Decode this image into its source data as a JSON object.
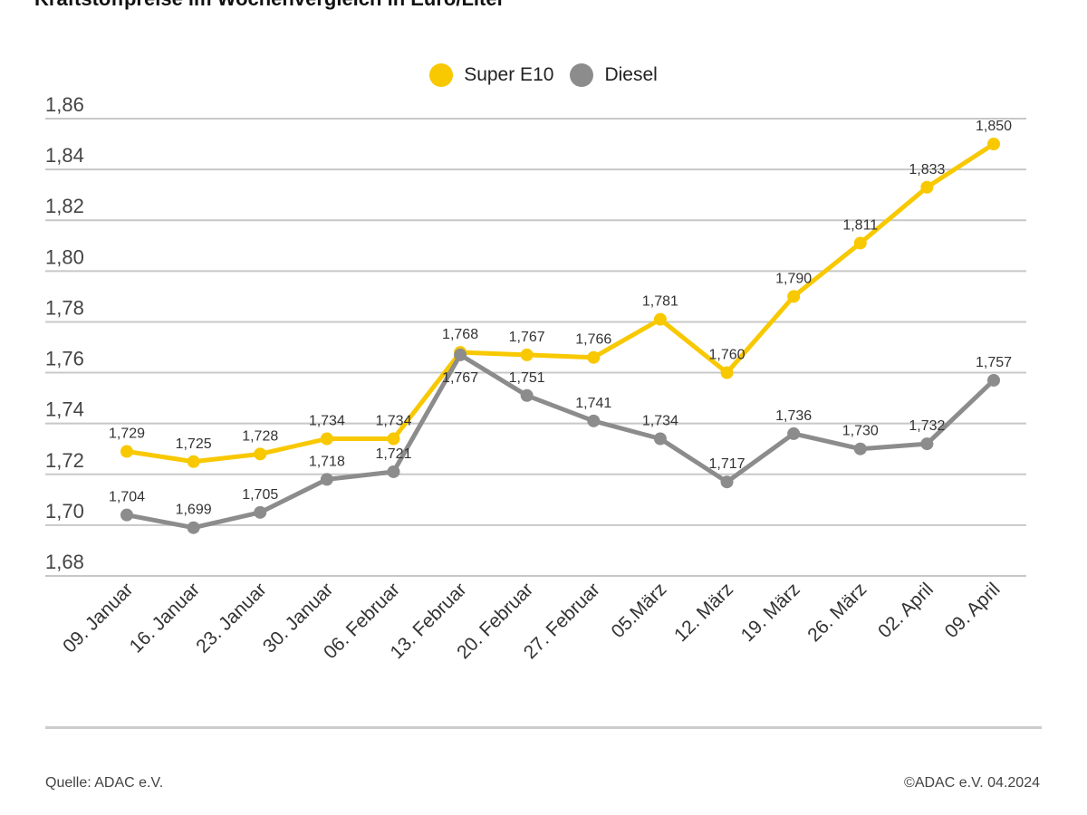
{
  "title": "Kraftstoffpreise im Wochenvergleich in Euro/Liter",
  "source": "Quelle: ADAC e.V.",
  "copyright": "©ADAC e.V. 04.2024",
  "chart_data": {
    "type": "line",
    "title": "Kraftstoffpreise im Wochenvergleich in Euro/Liter",
    "categories": [
      "09. Januar",
      "16. Januar",
      "23. Januar",
      "30. Januar",
      "06. Februar",
      "13. Februar",
      "20. Februar",
      "27. Februar",
      "05.März",
      "12. März",
      "19. März",
      "26. März",
      "02. April",
      "09. April"
    ],
    "series": [
      {
        "name": "Super E10",
        "color": "#f8c800",
        "values": [
          1.729,
          1.725,
          1.728,
          1.734,
          1.734,
          1.768,
          1.767,
          1.766,
          1.781,
          1.76,
          1.79,
          1.811,
          1.833,
          1.85
        ]
      },
      {
        "name": "Diesel",
        "color": "#8c8c8c",
        "values": [
          1.704,
          1.699,
          1.705,
          1.718,
          1.721,
          1.767,
          1.751,
          1.741,
          1.734,
          1.717,
          1.736,
          1.73,
          1.732,
          1.757
        ]
      }
    ],
    "ylim": [
      1.68,
      1.86
    ],
    "yticks": [
      "1,68",
      "1,70",
      "1,72",
      "1,74",
      "1,76",
      "1,78",
      "1,80",
      "1,82",
      "1,84",
      "1,86"
    ],
    "grid": true,
    "legend": "top-center"
  }
}
